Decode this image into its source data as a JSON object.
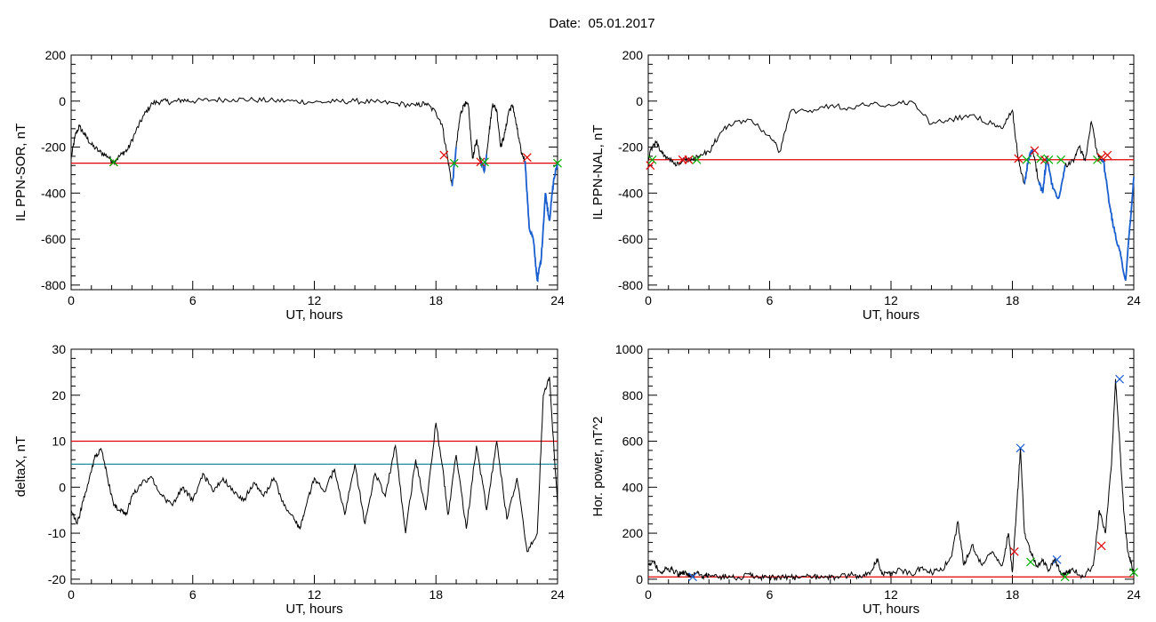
{
  "title": "Date:  05.01.2017",
  "colors": {
    "trace": "#000000",
    "threshold": "#e00000",
    "threshold2": "#1a8fa0",
    "segment": "#1a5fd0",
    "marker_red": "#e00000",
    "marker_green": "#00b000",
    "marker_blue": "#1a5fd0"
  },
  "chart_data": [
    {
      "type": "line",
      "xlabel": "UT, hours",
      "ylabel": "IL PPN-SOR, nT",
      "xlim": [
        0,
        24
      ],
      "ylim": [
        -820,
        200
      ],
      "xticks": [
        0,
        6,
        12,
        18,
        24
      ],
      "yticks": [
        -800,
        -600,
        -400,
        -200,
        0,
        200
      ],
      "thresholds": [
        {
          "value": -270,
          "color": "red"
        }
      ],
      "series": [
        {
          "x": [
            0,
            0.2,
            0.4,
            0.7,
            1,
            1.4,
            1.8,
            2.1,
            2.5,
            2.8,
            3.2,
            3.6,
            4,
            4.5,
            5,
            5.5,
            6,
            7,
            8,
            9,
            10,
            11,
            12,
            13,
            14,
            15,
            16,
            17,
            17.5,
            18,
            18.3,
            18.6,
            18.8,
            19,
            19.2,
            19.4,
            19.6,
            19.8,
            20,
            20.2,
            20.4,
            20.6,
            20.8,
            21,
            21.2,
            21.4,
            21.6,
            21.8,
            22,
            22.2,
            22.4,
            22.6,
            22.8,
            23,
            23.2,
            23.4,
            23.6,
            23.8,
            24
          ],
          "y": [
            -250,
            -150,
            -110,
            -150,
            -190,
            -220,
            -240,
            -265,
            -230,
            -210,
            -130,
            -60,
            -10,
            0,
            -5,
            5,
            0,
            5,
            8,
            5,
            2,
            0,
            -5,
            -3,
            0,
            -5,
            -10,
            -20,
            -10,
            -50,
            -100,
            -260,
            -370,
            -200,
            -60,
            -10,
            -20,
            -250,
            -170,
            -260,
            -300,
            -150,
            -10,
            -40,
            -200,
            -140,
            -40,
            -20,
            -120,
            -220,
            -260,
            -550,
            -600,
            -780,
            -680,
            -400,
            -520,
            -350,
            -270
          ]
        }
      ],
      "segments": [
        [
          18.8,
          19.0
        ],
        [
          20.2,
          20.5
        ],
        [
          22.4,
          24
        ]
      ],
      "markers": [
        {
          "x": 2.1,
          "y": -265,
          "color": "red"
        },
        {
          "x": 2.1,
          "y": -265,
          "color": "green"
        },
        {
          "x": 18.4,
          "y": -235,
          "color": "red"
        },
        {
          "x": 18.9,
          "y": -270,
          "color": "green"
        },
        {
          "x": 20.2,
          "y": -265,
          "color": "red"
        },
        {
          "x": 20.4,
          "y": -265,
          "color": "green"
        },
        {
          "x": 22.5,
          "y": -245,
          "color": "red"
        },
        {
          "x": 24,
          "y": -270,
          "color": "green"
        }
      ]
    },
    {
      "type": "line",
      "xlabel": "UT, hours",
      "ylabel": "IL PPN-NAL, nT",
      "xlim": [
        0,
        24
      ],
      "ylim": [
        -820,
        200
      ],
      "xticks": [
        0,
        6,
        12,
        18,
        24
      ],
      "yticks": [
        -800,
        -600,
        -400,
        -200,
        0,
        200
      ],
      "thresholds": [
        {
          "value": -255,
          "color": "red"
        }
      ],
      "series": [
        {
          "x": [
            0,
            0.2,
            0.4,
            0.7,
            1,
            1.4,
            1.8,
            2.1,
            2.5,
            3,
            3.5,
            4,
            5,
            6,
            6.5,
            7,
            8,
            9,
            10,
            11,
            12,
            13,
            14,
            15,
            16,
            17,
            17.5,
            18,
            18.3,
            18.6,
            18.8,
            19,
            19.3,
            19.5,
            19.7,
            20,
            20.3,
            20.6,
            21,
            21.3,
            21.6,
            21.9,
            22.2,
            22.5,
            22.8,
            23,
            23.3,
            23.6,
            24
          ],
          "y": [
            -250,
            -200,
            -180,
            -230,
            -250,
            -280,
            -250,
            -260,
            -240,
            -220,
            -150,
            -100,
            -80,
            -150,
            -220,
            -50,
            -40,
            -20,
            -30,
            -10,
            -20,
            0,
            -100,
            -80,
            -60,
            -100,
            -120,
            -40,
            -260,
            -360,
            -250,
            -210,
            -350,
            -400,
            -240,
            -380,
            -420,
            -280,
            -260,
            -200,
            -260,
            -90,
            -230,
            -260,
            -450,
            -550,
            -650,
            -780,
            -330
          ]
        }
      ],
      "segments": [
        [
          18.6,
          19.0
        ],
        [
          19.3,
          20.6
        ],
        [
          22.4,
          24
        ]
      ],
      "markers": [
        {
          "x": 0.1,
          "y": -280,
          "color": "red"
        },
        {
          "x": 0.2,
          "y": -255,
          "color": "green"
        },
        {
          "x": 1.7,
          "y": -255,
          "color": "red"
        },
        {
          "x": 2.0,
          "y": -255,
          "color": "red"
        },
        {
          "x": 2.4,
          "y": -255,
          "color": "green"
        },
        {
          "x": 18.3,
          "y": -250,
          "color": "red"
        },
        {
          "x": 18.7,
          "y": -255,
          "color": "green"
        },
        {
          "x": 19.1,
          "y": -215,
          "color": "red"
        },
        {
          "x": 19.4,
          "y": -250,
          "color": "green"
        },
        {
          "x": 19.6,
          "y": -255,
          "color": "red"
        },
        {
          "x": 19.8,
          "y": -255,
          "color": "green"
        },
        {
          "x": 20.4,
          "y": -255,
          "color": "green"
        },
        {
          "x": 22.2,
          "y": -255,
          "color": "green"
        },
        {
          "x": 22.4,
          "y": -245,
          "color": "red"
        },
        {
          "x": 22.7,
          "y": -235,
          "color": "red"
        }
      ]
    },
    {
      "type": "line",
      "xlabel": "UT, hours",
      "ylabel": "deltaX, nT",
      "xlim": [
        0,
        24
      ],
      "ylim": [
        -21,
        30
      ],
      "xticks": [
        0,
        6,
        12,
        18,
        24
      ],
      "yticks": [
        -20,
        -10,
        0,
        10,
        20,
        30
      ],
      "thresholds": [
        {
          "value": 10,
          "color": "red"
        },
        {
          "value": 5,
          "color": "teal"
        }
      ],
      "series": [
        {
          "x": [
            0,
            0.3,
            0.6,
            0.9,
            1.2,
            1.5,
            1.8,
            2.1,
            2.4,
            2.7,
            3,
            3.5,
            4,
            4.5,
            5,
            5.5,
            6,
            6.5,
            7,
            7.5,
            8,
            8.5,
            9,
            9.5,
            10,
            10.5,
            11,
            11.3,
            11.6,
            12,
            12.5,
            13,
            13.5,
            14,
            14.5,
            15,
            15.5,
            16,
            16.5,
            17,
            17.5,
            18,
            18.3,
            18.6,
            19,
            19.5,
            20,
            20.5,
            21,
            21.5,
            22,
            22.5,
            23,
            23.3,
            23.6,
            24
          ],
          "y": [
            -5,
            -8,
            -3,
            2,
            7,
            8,
            2,
            -4,
            -5,
            -6,
            -2,
            1,
            2,
            -2,
            -4,
            0,
            -3,
            3,
            -1,
            2,
            -1,
            -3,
            1,
            -2,
            2,
            -4,
            -7,
            -9,
            -4,
            2,
            -1,
            4,
            -6,
            5,
            -8,
            3,
            -2,
            9,
            -10,
            6,
            -5,
            14,
            5,
            -6,
            7,
            -9,
            9,
            -5,
            10,
            -7,
            2,
            -14,
            -10,
            20,
            24,
            -4
          ]
        }
      ],
      "segments": [],
      "markers": []
    },
    {
      "type": "line",
      "xlabel": "UT, hours",
      "ylabel": "Hor. power, nT^2",
      "xlim": [
        0,
        24
      ],
      "ylim": [
        -20,
        1000
      ],
      "xticks": [
        0,
        6,
        12,
        18,
        24
      ],
      "yticks": [
        0,
        200,
        400,
        600,
        800,
        1000
      ],
      "thresholds": [
        {
          "value": 10,
          "color": "red"
        }
      ],
      "series": [
        {
          "x": [
            0,
            0.3,
            0.6,
            0.9,
            1.2,
            1.5,
            1.8,
            2.1,
            2.4,
            2.7,
            3,
            3.5,
            4,
            4.5,
            5,
            5.5,
            6,
            6.5,
            7,
            7.5,
            8,
            8.5,
            9,
            9.5,
            10,
            10.5,
            11,
            11.3,
            11.6,
            12,
            12.5,
            13,
            13.5,
            14,
            14.5,
            15,
            15.3,
            15.6,
            16,
            16.5,
            17,
            17.5,
            17.8,
            18,
            18.2,
            18.4,
            18.6,
            18.9,
            19.2,
            19.5,
            19.8,
            20.1,
            20.4,
            20.7,
            21,
            21.5,
            22,
            22.3,
            22.6,
            22.9,
            23.1,
            23.3,
            23.5,
            23.7,
            23.9,
            24
          ],
          "y": [
            60,
            70,
            30,
            50,
            40,
            20,
            30,
            10,
            30,
            10,
            20,
            5,
            15,
            5,
            20,
            5,
            10,
            5,
            10,
            5,
            15,
            5,
            5,
            10,
            20,
            10,
            30,
            90,
            20,
            30,
            40,
            20,
            50,
            30,
            40,
            100,
            250,
            60,
            150,
            60,
            120,
            60,
            200,
            30,
            300,
            570,
            200,
            120,
            60,
            80,
            40,
            90,
            20,
            30,
            40,
            10,
            60,
            300,
            200,
            500,
            870,
            600,
            300,
            120,
            60,
            20
          ]
        }
      ],
      "segments": [],
      "markers": [
        {
          "x": 2.2,
          "y": 10,
          "color": "blue"
        },
        {
          "x": 18.1,
          "y": 120,
          "color": "red"
        },
        {
          "x": 18.4,
          "y": 570,
          "color": "blue"
        },
        {
          "x": 18.9,
          "y": 75,
          "color": "green"
        },
        {
          "x": 20.2,
          "y": 85,
          "color": "blue"
        },
        {
          "x": 20.6,
          "y": 10,
          "color": "green"
        },
        {
          "x": 22.4,
          "y": 145,
          "color": "red"
        },
        {
          "x": 23.3,
          "y": 870,
          "color": "blue"
        },
        {
          "x": 24,
          "y": 30,
          "color": "green"
        }
      ]
    }
  ]
}
